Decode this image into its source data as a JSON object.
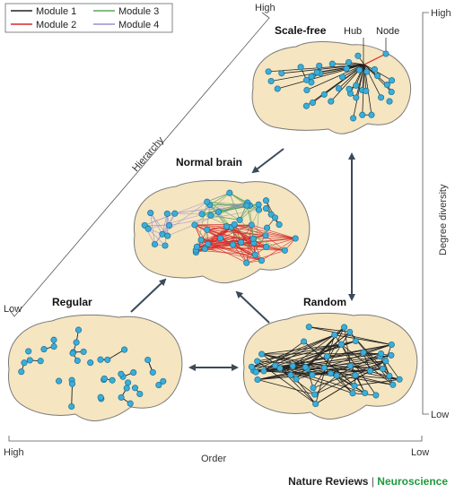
{
  "legend": [
    {
      "label": "Module 1",
      "color": "#222222"
    },
    {
      "label": "Module 2",
      "color": "#d42a2a"
    },
    {
      "label": "Module 3",
      "color": "#5aa55a"
    },
    {
      "label": "Module 4",
      "color": "#9b8fd0"
    }
  ],
  "brains": {
    "scale_free": {
      "title": "Scale-free",
      "hub_label": "Hub",
      "node_label": "Node"
    },
    "normal": {
      "title": "Normal brain"
    },
    "regular": {
      "title": "Regular"
    },
    "random": {
      "title": "Random"
    }
  },
  "axes": {
    "hierarchy": {
      "label": "Hierarchy",
      "high": "High",
      "low": "Low"
    },
    "degree_diversity": {
      "label": "Degree diversity",
      "high": "High",
      "low": "Low"
    },
    "order": {
      "label": "Order",
      "high": "High",
      "low": "Low"
    }
  },
  "credit": {
    "journal": "Nature Reviews",
    "separator": "|",
    "section": "Neuroscience"
  },
  "colors": {
    "brain_fill": "#f5e5c0",
    "brain_stroke": "#7a7a7a",
    "node_fill": "#3aaed8",
    "node_stroke": "#1d6f95",
    "arrow": "#3b4a5a"
  }
}
